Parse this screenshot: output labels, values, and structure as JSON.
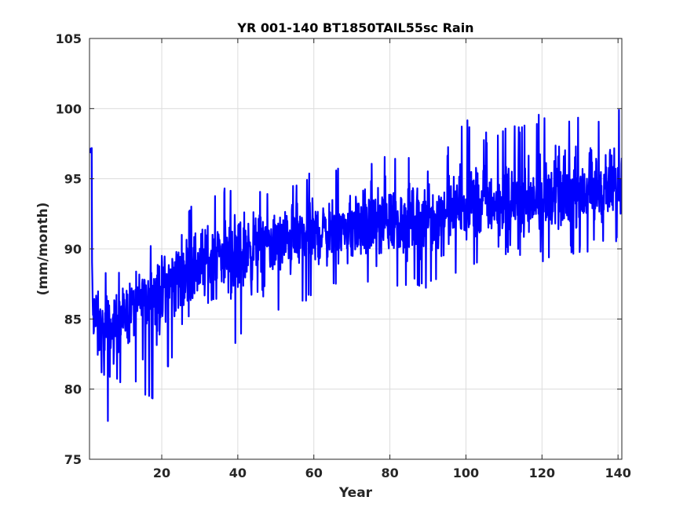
{
  "chart_data": {
    "type": "line",
    "title": "YR 001-140 BT1850TAIL55sc Rain",
    "xlabel": "Year",
    "ylabel": "(mm/month)",
    "xlim": [
      1,
      141
    ],
    "ylim": [
      75,
      105
    ],
    "xticks": [
      20,
      40,
      60,
      80,
      100,
      120,
      140
    ],
    "xtick_labels": [
      "20",
      "40",
      "60",
      "80",
      "100",
      "120",
      "140"
    ],
    "yticks": [
      75,
      80,
      85,
      90,
      95,
      100,
      105
    ],
    "ytick_labels": [
      "75",
      "80",
      "85",
      "90",
      "95",
      "100",
      "105"
    ],
    "grid": true,
    "line_color": "#0000ff",
    "series": [
      {
        "values_note_units": "mm/month",
        "x": [
          1,
          1.5,
          2,
          3,
          4,
          5,
          6,
          7,
          8,
          10,
          12,
          15,
          18,
          20,
          25,
          30,
          35,
          40,
          45,
          50,
          55,
          60,
          65,
          70,
          75,
          80,
          85,
          90,
          95,
          100,
          105,
          110,
          115,
          120,
          125,
          130,
          135,
          140
        ],
        "mean": [
          97.3,
          89.0,
          86.0,
          84.5,
          84.0,
          83.8,
          84.0,
          84.3,
          84.6,
          85.2,
          85.8,
          86.5,
          87.0,
          87.5,
          88.3,
          89.0,
          89.6,
          90.0,
          90.3,
          90.6,
          90.9,
          91.1,
          91.3,
          91.5,
          91.7,
          91.9,
          92.1,
          92.3,
          92.5,
          92.8,
          93.0,
          93.2,
          93.4,
          93.6,
          93.8,
          94.0,
          94.0,
          94.0
        ],
        "min": [
          97.0,
          85.0,
          80.5,
          79.0,
          79.5,
          76.7,
          77.3,
          79.0,
          80.0,
          80.5,
          81.0,
          79.2,
          79.3,
          80.5,
          82.5,
          83.6,
          84.0,
          83.1,
          84.0,
          85.0,
          85.5,
          86.5,
          86.8,
          87.0,
          87.5,
          86.8,
          87.5,
          87.0,
          88.0,
          88.5,
          89.0,
          89.5,
          89.5,
          89.0,
          89.5,
          89.5,
          90.0,
          90.5
        ],
        "max": [
          97.6,
          93.1,
          90.3,
          89.2,
          88.5,
          88.6,
          88.6,
          89.0,
          88.6,
          89.3,
          89.7,
          90.2,
          90.6,
          90.8,
          92.9,
          93.8,
          94.5,
          95.2,
          94.5,
          94.5,
          95.2,
          95.7,
          95.6,
          96.1,
          96.5,
          97.3,
          96.6,
          97.2,
          97.3,
          99.6,
          98.3,
          98.8,
          98.9,
          100.0,
          99.6,
          99.6,
          99.8,
          100.0
        ]
      }
    ]
  }
}
